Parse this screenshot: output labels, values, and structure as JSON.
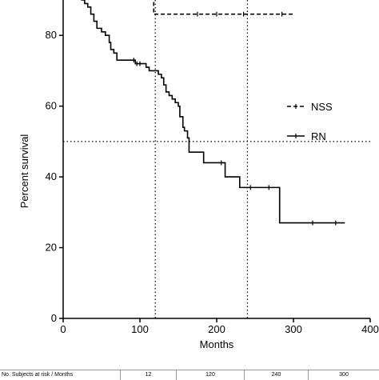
{
  "chart_data": {
    "type": "line",
    "subtype": "kaplan-meier",
    "title": "",
    "xlabel": "Months",
    "ylabel": "Percent survival",
    "xlim": [
      0,
      400
    ],
    "ylim": [
      0,
      90
    ],
    "xticks": [
      0,
      100,
      200,
      300,
      400
    ],
    "yticks": [
      0,
      20,
      40,
      60,
      80
    ],
    "grid": false,
    "legend_position": "right",
    "reference_lines": {
      "y": 50,
      "x": [
        120,
        240
      ]
    },
    "series": [
      {
        "name": "NSS",
        "style": "dashed",
        "color": "#000000",
        "steps": [
          [
            0,
            100
          ],
          [
            118,
            100
          ],
          [
            118,
            86
          ],
          [
            300,
            86
          ]
        ],
        "censors": [
          [
            175,
            86
          ],
          [
            200,
            86
          ],
          [
            235,
            86
          ],
          [
            285,
            86
          ]
        ]
      },
      {
        "name": "RN",
        "style": "solid",
        "color": "#000000",
        "steps": [
          [
            0,
            100
          ],
          [
            8,
            98
          ],
          [
            12,
            96
          ],
          [
            16,
            94
          ],
          [
            20,
            92
          ],
          [
            24,
            90
          ],
          [
            28,
            89
          ],
          [
            32,
            88
          ],
          [
            36,
            86
          ],
          [
            40,
            84
          ],
          [
            44,
            82
          ],
          [
            50,
            81
          ],
          [
            55,
            80
          ],
          [
            60,
            78
          ],
          [
            62,
            76
          ],
          [
            66,
            75
          ],
          [
            70,
            73
          ],
          [
            88,
            73
          ],
          [
            94,
            72
          ],
          [
            98,
            72
          ],
          [
            108,
            71
          ],
          [
            112,
            70
          ],
          [
            124,
            69
          ],
          [
            128,
            68
          ],
          [
            131,
            66
          ],
          [
            134,
            64
          ],
          [
            138,
            63
          ],
          [
            142,
            62
          ],
          [
            146,
            61
          ],
          [
            150,
            60
          ],
          [
            152,
            57
          ],
          [
            156,
            54
          ],
          [
            158,
            53
          ],
          [
            162,
            51
          ],
          [
            164,
            47
          ],
          [
            180,
            47
          ],
          [
            183,
            44
          ],
          [
            210,
            44
          ],
          [
            211,
            40
          ],
          [
            229,
            40
          ],
          [
            230,
            37
          ],
          [
            242,
            37
          ],
          [
            257,
            37
          ],
          [
            280,
            37
          ],
          [
            282,
            27
          ],
          [
            367,
            27
          ]
        ],
        "censors": [
          [
            92,
            73
          ],
          [
            96,
            72
          ],
          [
            100,
            72
          ],
          [
            206,
            44
          ],
          [
            244,
            37
          ],
          [
            268,
            37
          ],
          [
            325,
            27
          ],
          [
            355,
            27
          ]
        ]
      }
    ]
  },
  "risk_table": {
    "header": "No. Subjects at risk / Months",
    "months": [
      "12",
      "120",
      "240",
      "300"
    ]
  }
}
